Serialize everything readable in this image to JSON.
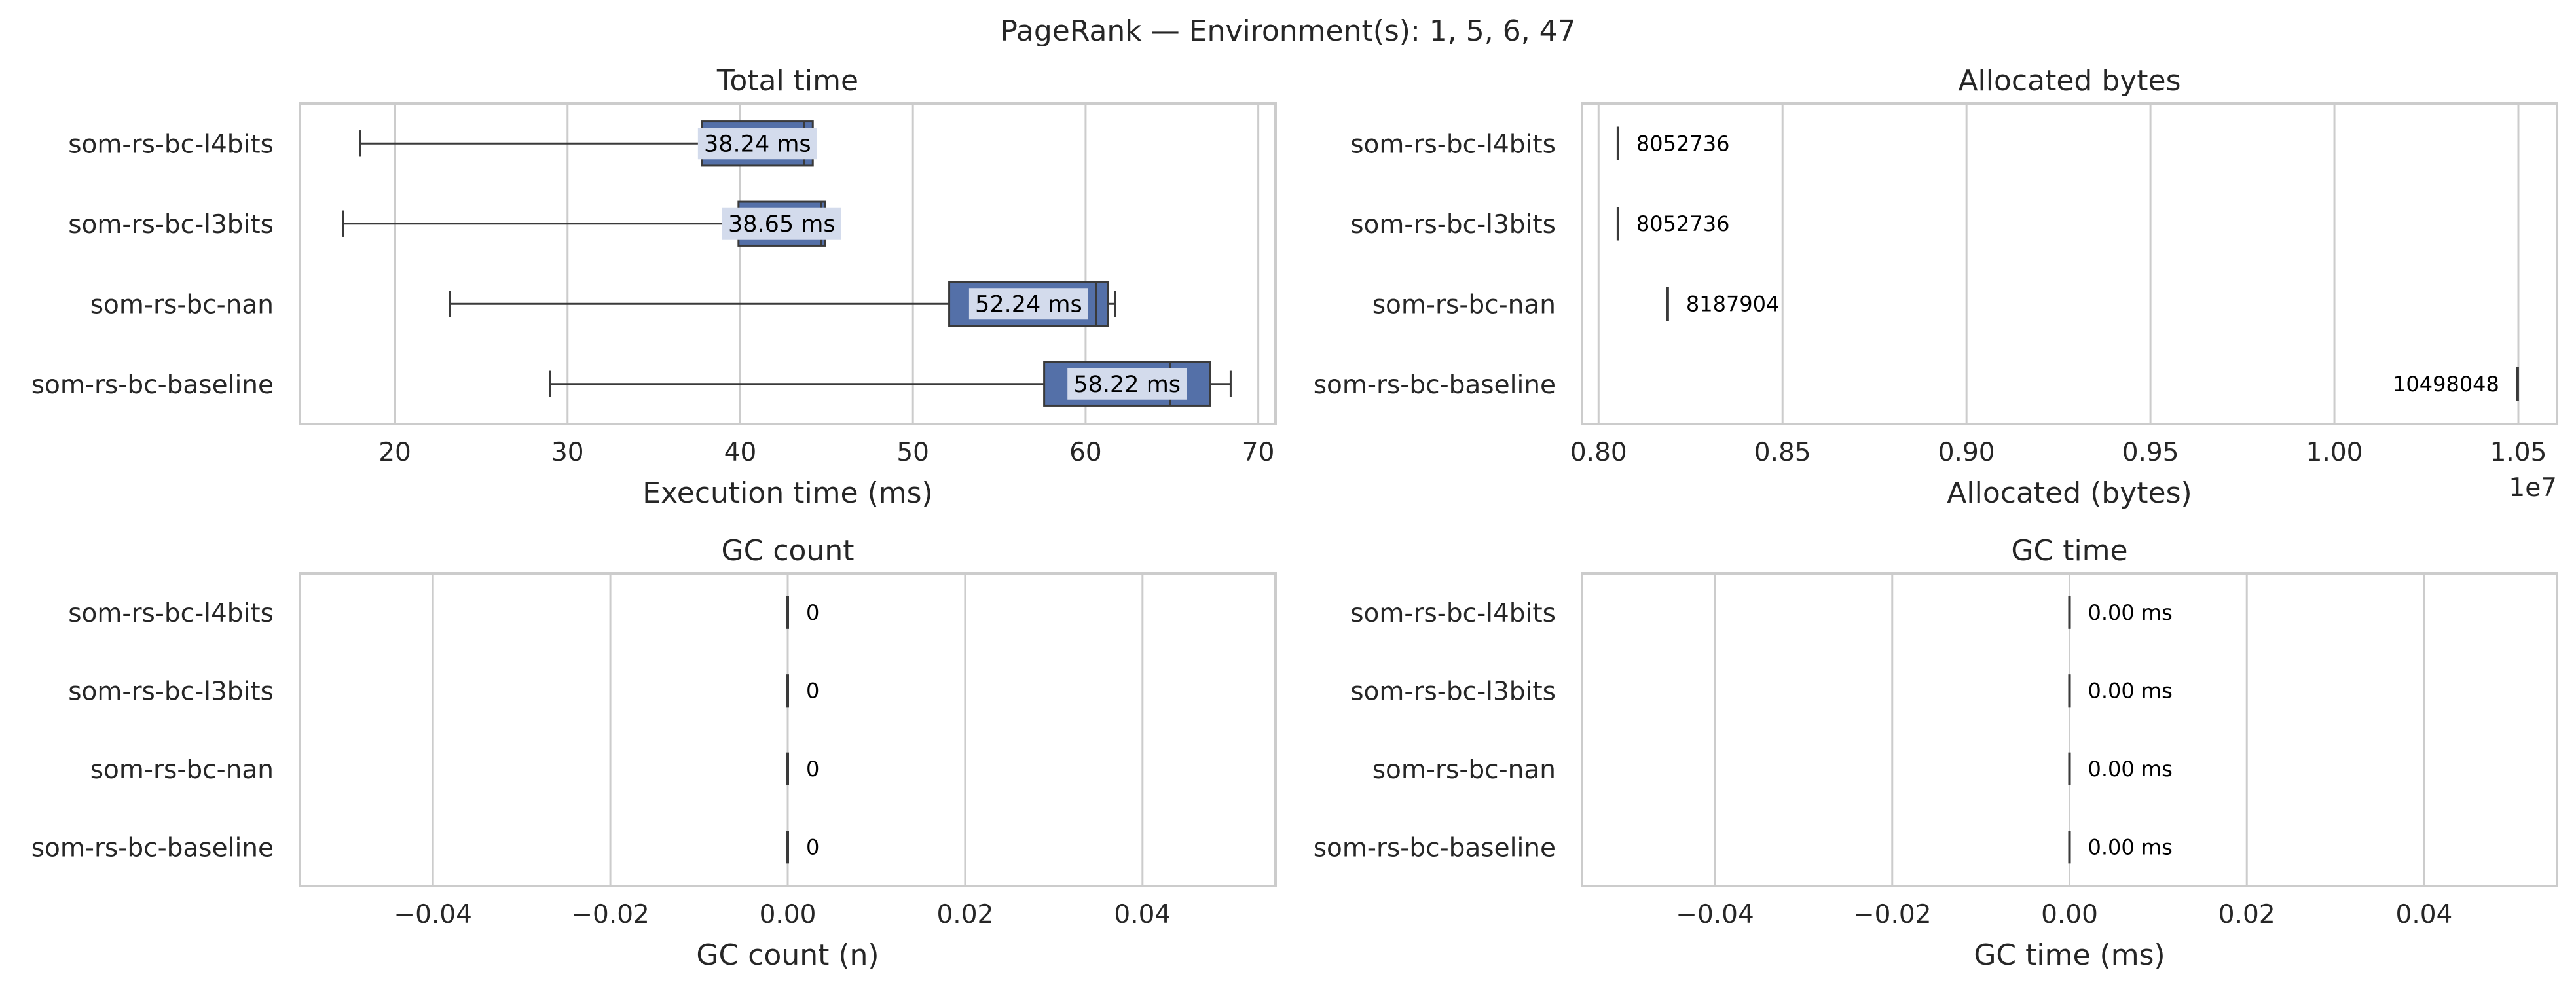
{
  "suptitle": "PageRank — Environment(s): 1, 5, 6, 47",
  "colors": {
    "box": "#5470a8",
    "label_bg": "#d3dbec",
    "grid": "#cccccc",
    "frame": "#cccccc",
    "line": "#3a3a3a"
  },
  "chart_data": [
    {
      "type": "box",
      "title": "Total time",
      "xlabel": "Execution time (ms)",
      "xlim": [
        14.5,
        71
      ],
      "xticks": [
        20,
        30,
        40,
        50,
        60,
        70
      ],
      "xtick_labels": [
        "20",
        "30",
        "40",
        "50",
        "60",
        "70"
      ],
      "grid": true,
      "categories": [
        "som-rs-bc-l4bits",
        "som-rs-bc-l3bits",
        "som-rs-bc-nan",
        "som-rs-bc-baseline"
      ],
      "boxes": [
        {
          "whislo": 18.0,
          "q1": 37.8,
          "med": 43.7,
          "q3": 44.2,
          "whishi": 44.2,
          "label": "38.24 ms"
        },
        {
          "whislo": 17.0,
          "q1": 39.9,
          "med": 44.7,
          "q3": 44.9,
          "whishi": 44.9,
          "label": "38.65 ms"
        },
        {
          "whislo": 23.2,
          "q1": 52.1,
          "med": 60.6,
          "q3": 61.3,
          "whishi": 61.7,
          "label": "52.24 ms"
        },
        {
          "whislo": 29.0,
          "q1": 57.6,
          "med": 64.9,
          "q3": 67.2,
          "whishi": 68.4,
          "label": "58.22 ms"
        }
      ]
    },
    {
      "type": "box",
      "title": "Allocated bytes",
      "xlabel": "Allocated (bytes)",
      "offset_label": "1e7",
      "xlim": [
        0.7955,
        1.0605
      ],
      "xticks": [
        0.8,
        0.85,
        0.9,
        0.95,
        1.0,
        1.05
      ],
      "xtick_labels": [
        "0.80",
        "0.85",
        "0.90",
        "0.95",
        "1.00",
        "1.05"
      ],
      "grid": true,
      "categories": [
        "som-rs-bc-l4bits",
        "som-rs-bc-l3bits",
        "som-rs-bc-nan",
        "som-rs-bc-baseline"
      ],
      "values": [
        0.8052736,
        0.8052736,
        0.8187904,
        1.0498048
      ],
      "labels": [
        "8052736",
        "8052736",
        "8187904",
        "10498048"
      ]
    },
    {
      "type": "box",
      "title": "GC count",
      "xlabel": "GC count (n)",
      "xlim": [
        -0.055,
        0.055
      ],
      "xticks": [
        -0.04,
        -0.02,
        0.0,
        0.02,
        0.04
      ],
      "xtick_labels": [
        "−0.04",
        "−0.02",
        "0.00",
        "0.02",
        "0.04"
      ],
      "grid": true,
      "categories": [
        "som-rs-bc-l4bits",
        "som-rs-bc-l3bits",
        "som-rs-bc-nan",
        "som-rs-bc-baseline"
      ],
      "values": [
        0,
        0,
        0,
        0
      ],
      "labels": [
        "0",
        "0",
        "0",
        "0"
      ]
    },
    {
      "type": "box",
      "title": "GC time",
      "xlabel": "GC time (ms)",
      "xlim": [
        -0.055,
        0.055
      ],
      "xticks": [
        -0.04,
        -0.02,
        0.0,
        0.02,
        0.04
      ],
      "xtick_labels": [
        "−0.04",
        "−0.02",
        "0.00",
        "0.02",
        "0.04"
      ],
      "grid": true,
      "categories": [
        "som-rs-bc-l4bits",
        "som-rs-bc-l3bits",
        "som-rs-bc-nan",
        "som-rs-bc-baseline"
      ],
      "values": [
        0,
        0,
        0,
        0
      ],
      "labels": [
        "0.00 ms",
        "0.00 ms",
        "0.00 ms",
        "0.00 ms"
      ]
    }
  ]
}
